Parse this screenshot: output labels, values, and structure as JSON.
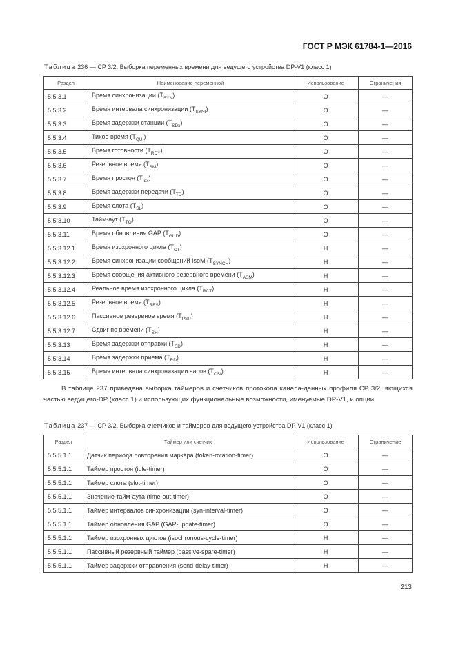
{
  "header": "ГОСТ Р МЭК 61784-1—2016",
  "table1": {
    "caption_label": "Таблица",
    "caption": " 236 — CP 3/2. Выборка переменных времени для ведущего устройства DP-V1 (класс 1)",
    "columns": [
      "Раздел",
      "Наименование переменной",
      "Использование",
      "Ограничения"
    ],
    "rows": [
      [
        "5.5.3.1",
        "Время синхронизации (T",
        "SYN",
        ")",
        "O",
        "—"
      ],
      [
        "5.5.3.2",
        "Время интервала синхронизации (T",
        "SYNI",
        ")",
        "O",
        "—"
      ],
      [
        "5.5.3.3",
        "Время задержки станции (T",
        "SDx",
        ")",
        "O",
        "—"
      ],
      [
        "5.5.3.4",
        "Тихое время (T",
        "QUI",
        ")",
        "O",
        "—"
      ],
      [
        "5.5.3.5",
        "Время готовности (T",
        "RDY",
        ")",
        "O",
        "—"
      ],
      [
        "5.5.3.6",
        "Резервное время (T",
        "SM",
        ")",
        "O",
        "—"
      ],
      [
        "5.5.3.7",
        "Время простоя (T",
        "Idx",
        ")",
        "O",
        "—"
      ],
      [
        "5.5.3.8",
        "Время задержки передачи (T",
        "TD",
        ")",
        "O",
        "—"
      ],
      [
        "5.5.3.9",
        "Время слота (T",
        "SL",
        ")",
        "O",
        "—"
      ],
      [
        "5.5.3.10",
        "Тайм-аут (T",
        "TO",
        ")",
        "O",
        "—"
      ],
      [
        "5.5.3.11",
        "Время обновления GAP (T",
        "GUD",
        ")",
        "O",
        "—"
      ],
      [
        "5.5.3.12.1",
        "Время изохронного цикла (T",
        "CT",
        ")",
        "Н",
        "—"
      ],
      [
        "5.5.3.12.2",
        "Время синхронизации сообщений IsoM (T",
        "SYNCH",
        ")",
        "Н",
        "—"
      ],
      [
        "5.5.3.12.3",
        "Время сообщения активного резервного времени (T",
        "ASM",
        ")",
        "Н",
        "—"
      ],
      [
        "5.5.3.12.4",
        "Реальное время изохронного цикла (T",
        "RCT",
        ")",
        "Н",
        "—"
      ],
      [
        "5.5.3.12.5",
        "Резервное время (T",
        "RES",
        ")",
        "Н",
        "—"
      ],
      [
        "5.5.3.12.6",
        "Пассивное резервное время (T",
        "PSP",
        ")",
        "Н",
        "—"
      ],
      [
        "5.5.3.12.7",
        "Сдвиг по времени (T",
        "SH",
        ")",
        "Н",
        "—"
      ],
      [
        "5.5.3.13",
        "Время задержки отправки (T",
        "SD",
        ")",
        "Н",
        "—"
      ],
      [
        "5.5.3.14",
        "Время задержки приема (T",
        "RD",
        ")",
        "Н",
        "—"
      ],
      [
        "5.5.3.15",
        "Время интервала синхронизации часов (T",
        "CSI",
        ")",
        "Н",
        "—"
      ]
    ]
  },
  "paragraph": "В таблице 237 приведена выборка таймеров и счетчиков протокола канала-данных профиля CP 3/2, яющихся частью ведущего-DP (класс 1) и использующих функциональные возможности, именуемые DP-V1, и опции.",
  "table2": {
    "caption_label": "Таблица",
    "caption": " 237 — CP 3/2. Выборка счетчиков и таймеров для ведущего устройства DP-V1 (класс 1)",
    "columns": [
      "Раздел",
      "Таймер или счетчик",
      "Использование",
      "Ограничение"
    ],
    "rows": [
      [
        "5.5.5.1.1",
        "Датчик периода повторения маркёра (token-rotation-timer)",
        "O",
        "—"
      ],
      [
        "5.5.5.1.1",
        "Таймер простоя (idle-timer)",
        "O",
        "—"
      ],
      [
        "5.5.5.1.1",
        "Таймер слота (slot-timer)",
        "O",
        "—"
      ],
      [
        "5.5.5.1.1",
        "Значение тайм-аута (time-out-timer)",
        "O",
        "—"
      ],
      [
        "5.5.5.1.1",
        "Таймер интервалов синхронизации (syn-interval-timer)",
        "O",
        "—"
      ],
      [
        "5.5.5.1.1",
        "Таймер обновления GAP (GAP-update-timer)",
        "O",
        "—"
      ],
      [
        "5.5.5.1.1",
        "Таймер изохронных циклов (isochronous-cycle-timer)",
        "Н",
        "—"
      ],
      [
        "5.5.5.1.1",
        "Пассивный резервный таймер (passive-spare-timer)",
        "Н",
        "—"
      ],
      [
        "5.5.5.1.1",
        "Таймер задержки отправления (send-delay-timer)",
        "Н",
        "—"
      ]
    ]
  },
  "page_number": "213"
}
